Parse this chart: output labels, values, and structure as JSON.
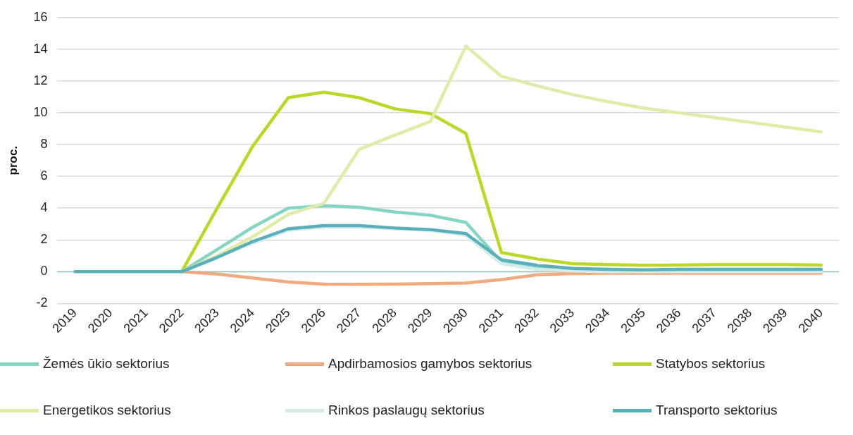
{
  "chart_data": {
    "type": "line",
    "ylabel": "proc.",
    "categories": [
      "2019",
      "2020",
      "2021",
      "2022",
      "2023",
      "2024",
      "2025",
      "2026",
      "2027",
      "2028",
      "2029",
      "2030",
      "2031",
      "2032",
      "2033",
      "2034",
      "2035",
      "2036",
      "2037",
      "2038",
      "2039",
      "2040"
    ],
    "ylim": [
      -2,
      16
    ],
    "yticks": [
      -2,
      0,
      2,
      4,
      6,
      8,
      10,
      12,
      14,
      16
    ],
    "grid": "y",
    "legend": "bottom",
    "line_style": "solid",
    "marker": "none",
    "ref_lines": [
      {
        "axis": "y",
        "value": 0,
        "color": "#7fd3c0"
      }
    ],
    "series": [
      {
        "name": "Žemės ūkio sektorius",
        "color": "#86d4c4",
        "values": [
          null,
          null,
          null,
          0,
          1.4,
          2.8,
          4.0,
          4.15,
          4.05,
          3.75,
          3.55,
          3.1,
          0.6,
          0.2,
          0.1,
          0.05,
          0.05,
          0.05,
          0.05,
          0.05,
          0.05,
          0.05
        ]
      },
      {
        "name": "Apdirbamosios gamybos sektorius",
        "color": "#f0aa80",
        "values": [
          null,
          null,
          null,
          0,
          -0.15,
          -0.4,
          -0.65,
          -0.78,
          -0.8,
          -0.78,
          -0.75,
          -0.72,
          -0.5,
          -0.2,
          -0.12,
          -0.1,
          -0.1,
          -0.1,
          -0.1,
          -0.1,
          -0.1,
          -0.1
        ]
      },
      {
        "name": "Statybos sektorius",
        "color": "#bcd62a",
        "values": [
          null,
          null,
          null,
          0,
          4.0,
          7.9,
          10.95,
          11.3,
          10.95,
          10.25,
          9.95,
          8.7,
          1.2,
          0.8,
          0.5,
          0.45,
          0.4,
          0.42,
          0.45,
          0.45,
          0.45,
          0.42
        ]
      },
      {
        "name": "Energetikos sektorius",
        "color": "#dfeba6",
        "values": [
          null,
          null,
          null,
          0,
          1.0,
          2.2,
          3.6,
          4.3,
          7.7,
          8.6,
          9.45,
          14.2,
          12.3,
          11.7,
          11.15,
          10.7,
          10.3,
          10.0,
          9.7,
          9.4,
          9.1,
          8.8
        ]
      },
      {
        "name": "Rinkos paslaugų sektorius",
        "color": "#d5ece7",
        "values": [
          null,
          null,
          null,
          0,
          0.9,
          1.8,
          2.6,
          2.8,
          2.8,
          2.7,
          2.6,
          2.3,
          0.5,
          0.15,
          0.05,
          0,
          0,
          0,
          0,
          0,
          0,
          0
        ]
      },
      {
        "name": "Transporto sektorius",
        "color": "#5aafbc",
        "values": [
          0,
          0,
          0,
          0,
          0.9,
          1.9,
          2.7,
          2.9,
          2.9,
          2.75,
          2.65,
          2.4,
          0.75,
          0.4,
          0.2,
          0.15,
          0.12,
          0.15,
          0.15,
          0.15,
          0.15,
          0.15
        ]
      }
    ]
  }
}
